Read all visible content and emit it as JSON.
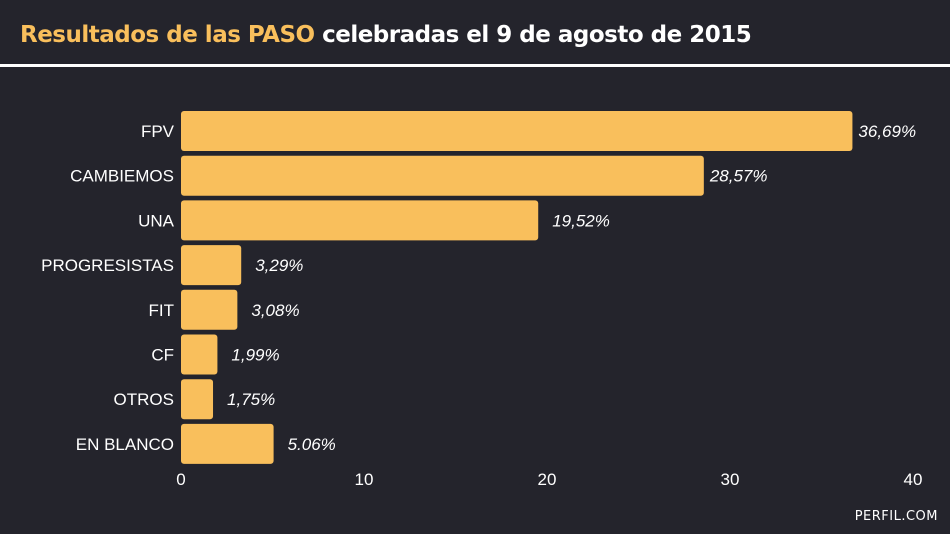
{
  "header": {
    "title_highlight": "Resultados de las PASO",
    "title_rest": " celebradas el 9 de agosto de 2015"
  },
  "footer": {
    "source": "PERFIL.COM"
  },
  "colors": {
    "bar": "#f9bf5c",
    "background": "#24242c",
    "text": "#ffffff",
    "accent": "#f9bf5c"
  },
  "chart_data": {
    "type": "bar",
    "orientation": "horizontal",
    "categories": [
      "FPV",
      "CAMBIEMOS",
      "UNA",
      "PROGRESISTAS",
      "FIT",
      "CF",
      "OTROS",
      "EN BLANCO"
    ],
    "values": [
      36.69,
      28.57,
      19.52,
      3.29,
      3.08,
      1.99,
      1.75,
      5.06
    ],
    "data_labels": [
      "36,69%",
      "28,57%",
      "19,52%",
      "3,29%",
      "3,08%",
      "1,99%",
      "1,75%",
      "5.06%"
    ],
    "xlim": [
      0,
      40
    ],
    "xticks": [
      0,
      10,
      20,
      30,
      40
    ],
    "xtick_labels": [
      "0",
      "10",
      "20",
      "30",
      "40"
    ],
    "grid": false,
    "legend": "none"
  }
}
